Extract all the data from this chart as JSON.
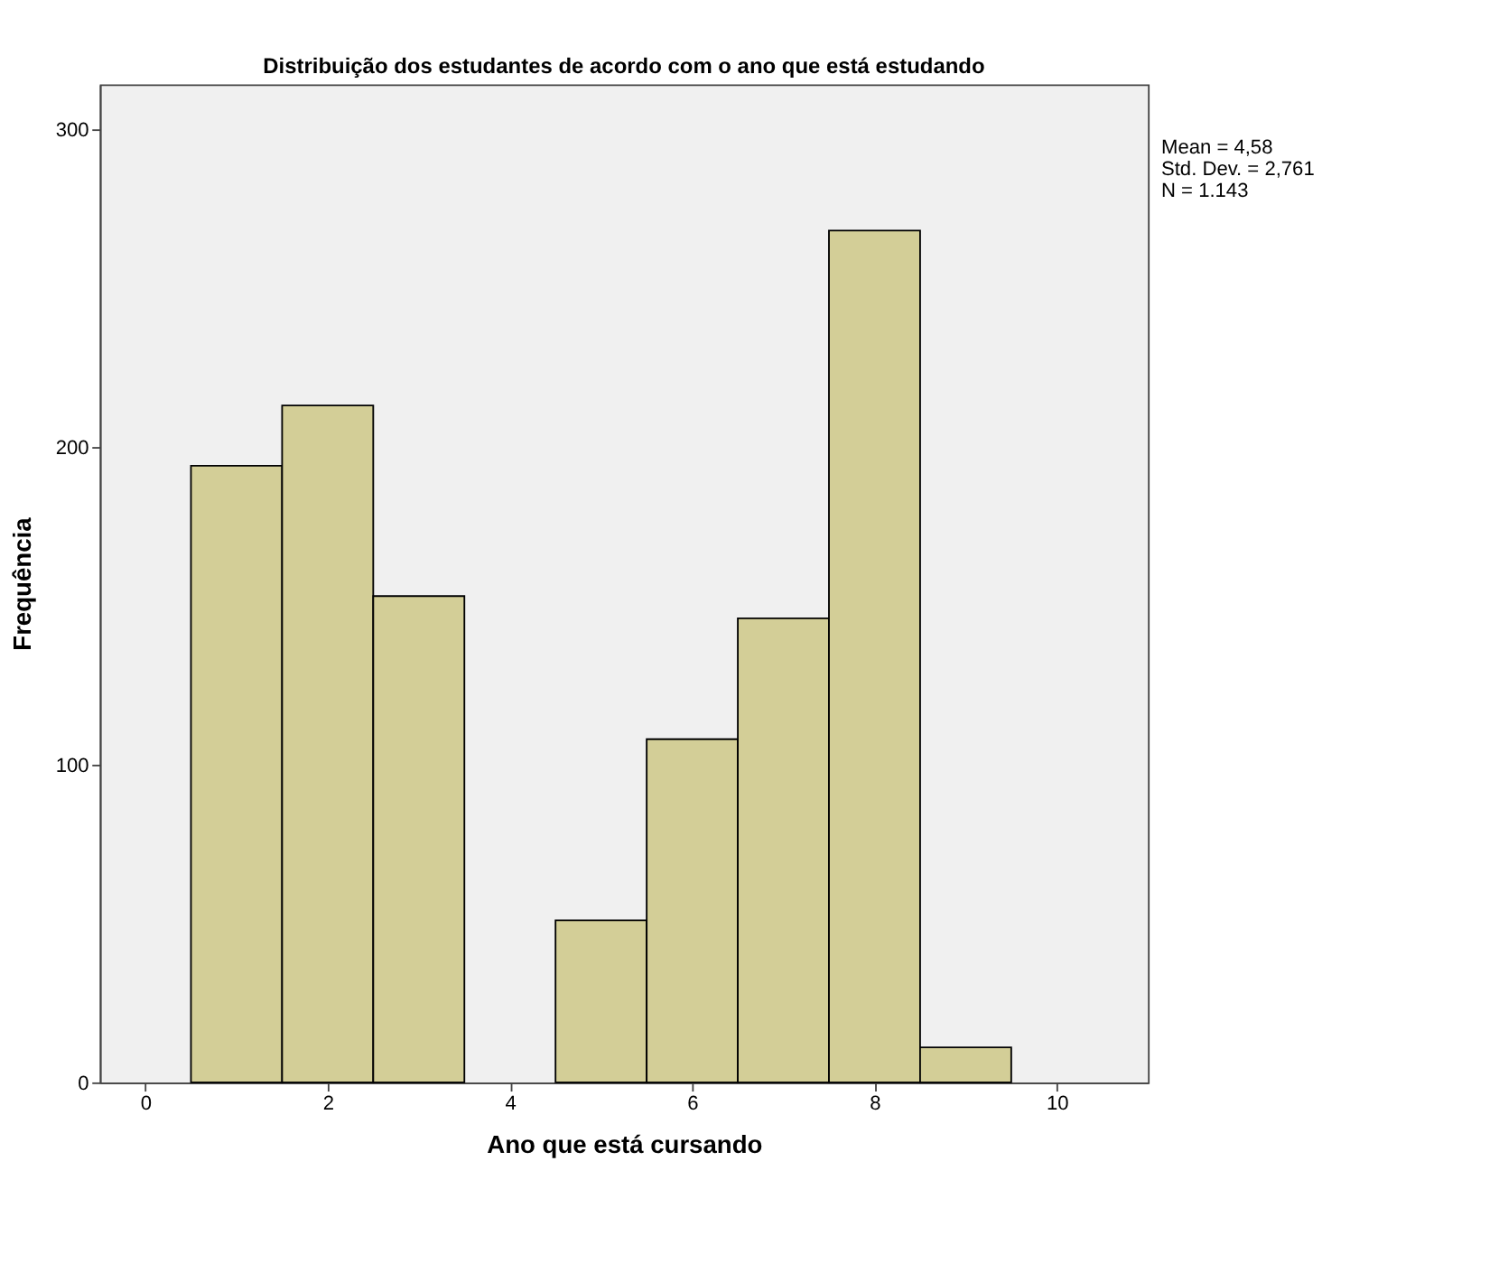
{
  "chart_data": {
    "type": "histogram",
    "title": "Distribuição dos estudantes de acordo com o ano que está estudando",
    "xlabel": "Ano que está cursando",
    "ylabel": "Frequência",
    "bins": [
      0.5,
      1.5,
      2.5,
      3.5,
      4.5,
      5.5,
      6.5,
      7.5,
      8.5,
      9.5
    ],
    "values": [
      194,
      213,
      153,
      null,
      51,
      108,
      146,
      268,
      11
    ],
    "color": "#d3ce97",
    "xlim": [
      -0.5,
      11
    ],
    "xticks": [
      0,
      2,
      4,
      6,
      8,
      10
    ],
    "ylim": [
      0,
      314
    ],
    "yticks": [
      0,
      100,
      200,
      300
    ],
    "grid": false,
    "annotations": [
      "Mean = 4,58",
      "Std. Dev. = 2,761",
      "N = 1.143"
    ]
  }
}
